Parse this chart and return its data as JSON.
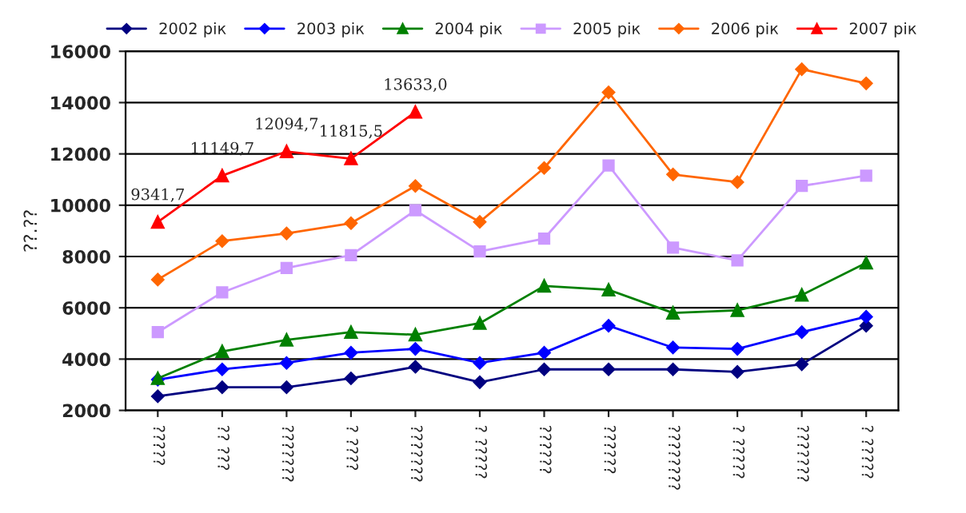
{
  "chart_data": {
    "type": "line",
    "ylabel": "??.??",
    "categories": [
      "?????",
      "?? ???",
      "???????",
      "? ????",
      "???????",
      "? ?????",
      "??????",
      "??????",
      "????????",
      "? ?????",
      "???????",
      "? ?????"
    ],
    "ylim": [
      2000,
      16000
    ],
    "yticks": [
      2000,
      4000,
      6000,
      8000,
      10000,
      12000,
      14000,
      16000
    ],
    "grid": "y",
    "legend": "top",
    "series": [
      {
        "name": "2002 рік",
        "color": "#000080",
        "marker": "diamond",
        "values": [
          2550,
          2900,
          2900,
          3250,
          3700,
          3100,
          3600,
          3600,
          3600,
          3500,
          3800,
          5300
        ]
      },
      {
        "name": "2003 рік",
        "color": "#0000ff",
        "marker": "diamond",
        "values": [
          3200,
          3600,
          3850,
          4250,
          4400,
          3850,
          4250,
          5300,
          4450,
          4400,
          5050,
          5650
        ]
      },
      {
        "name": "2004 рік",
        "color": "#008000",
        "marker": "triangle",
        "values": [
          3250,
          4300,
          4750,
          5050,
          4950,
          5400,
          6850,
          6700,
          5800,
          5900,
          6500,
          7750
        ]
      },
      {
        "name": "2005 рік",
        "color": "#cc99ff",
        "marker": "square",
        "values": [
          5050,
          6600,
          7550,
          8050,
          9800,
          8200,
          8700,
          11550,
          8350,
          7850,
          10750,
          11150
        ]
      },
      {
        "name": "2006 рік",
        "color": "#ff6600",
        "marker": "diamond",
        "values": [
          7100,
          8600,
          8900,
          9300,
          10750,
          9350,
          11450,
          14400,
          11200,
          10900,
          15300,
          14750
        ]
      },
      {
        "name": "2007 рік",
        "color": "#ff0000",
        "marker": "triangle",
        "values": [
          9341.7,
          11149.7,
          12094.7,
          11815.5,
          13633.0,
          null,
          null,
          null,
          null,
          null,
          null,
          null
        ],
        "value_labels": [
          "9341,7",
          "11149,7",
          "12094,7",
          "11815,5",
          "13633,0",
          null,
          null,
          null,
          null,
          null,
          null,
          null
        ]
      }
    ]
  }
}
